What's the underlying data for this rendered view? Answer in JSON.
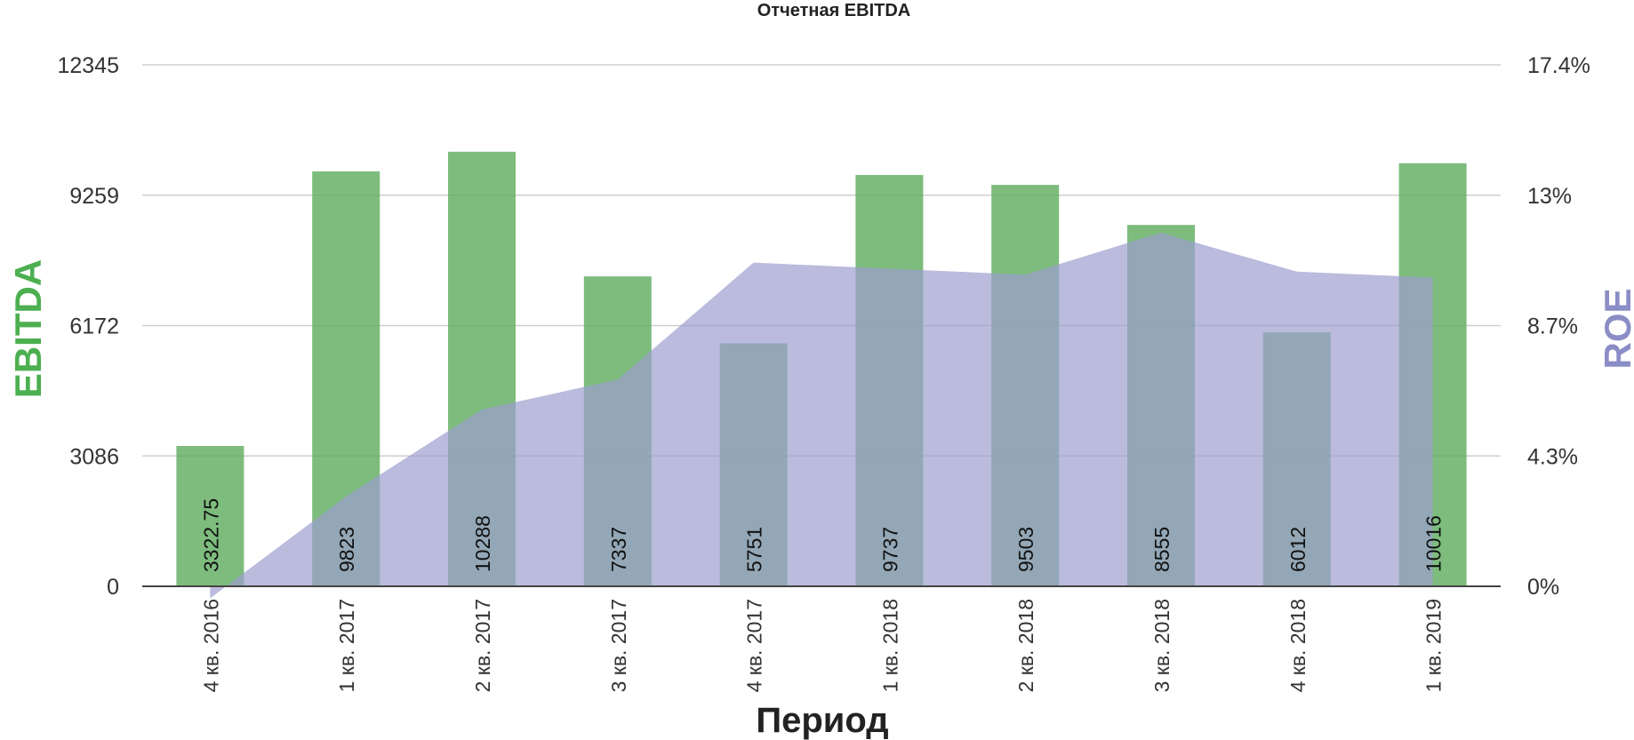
{
  "chart_data": {
    "type": "bar",
    "title": "Отчетная EBITDA",
    "xlabel": "Период",
    "ylabel": "EBITDA",
    "y2label": "ROE",
    "categories": [
      "4 кв. 2016",
      "1 кв. 2017",
      "2 кв. 2017",
      "3 кв. 2017",
      "4 кв. 2017",
      "1 кв. 2018",
      "2 кв. 2018",
      "3 кв. 2018",
      "4 кв. 2018",
      "1 кв. 2019"
    ],
    "series": [
      {
        "name": "EBITDA",
        "type": "bar",
        "axis": "left",
        "color": "#5cab5c",
        "values": [
          3322.75,
          9823,
          10288,
          7337,
          5751,
          9737,
          9503,
          8555,
          6012,
          10016
        ],
        "labels": [
          "3322.75",
          "9823",
          "10288",
          "7337",
          "5751",
          "9737",
          "9503",
          "8555",
          "6012",
          "10016"
        ]
      },
      {
        "name": "ROE",
        "type": "area",
        "axis": "right",
        "color": "#9c9ecf",
        "values": [
          -0.4,
          3.0,
          5.9,
          6.9,
          10.8,
          10.6,
          10.4,
          11.8,
          10.5,
          10.3
        ]
      }
    ],
    "ylim": [
      0,
      12345
    ],
    "y2lim": [
      0,
      17.4
    ],
    "yticks": [
      "0",
      "3086",
      "6172",
      "9259",
      "12345"
    ],
    "y2ticks": [
      "0%",
      "4.3%",
      "8.7%",
      "13%",
      "17.4%"
    ],
    "grid": true,
    "legend": "none"
  }
}
